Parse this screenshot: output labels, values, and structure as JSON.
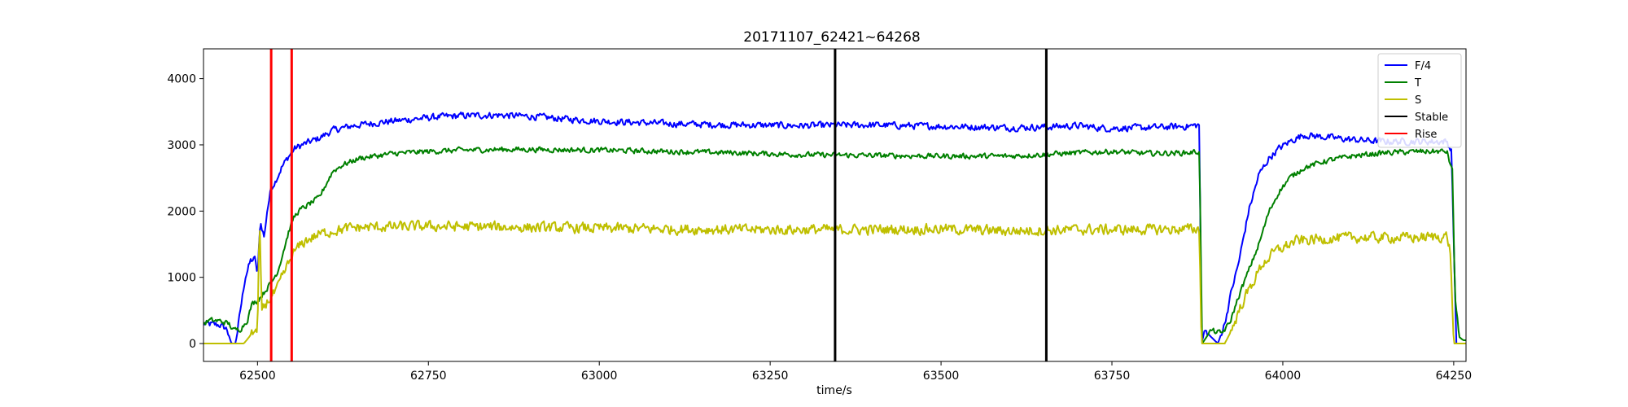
{
  "chart_data": {
    "type": "line",
    "title": "20171107_62421~64268",
    "xlabel": "time/s",
    "ylabel": "",
    "xlim": [
      62421,
      64268
    ],
    "ylim": [
      -270,
      4450
    ],
    "xticks": [
      62500,
      62750,
      63000,
      63250,
      63500,
      63750,
      64000,
      64250
    ],
    "yticks": [
      0,
      1000,
      2000,
      3000,
      4000
    ],
    "grid": false,
    "legend": {
      "placement": "top-right"
    },
    "series": [
      {
        "name": "F/4",
        "color": "#0000ff",
        "noise": 70,
        "points": [
          [
            62421,
            300
          ],
          [
            62445,
            280
          ],
          [
            62455,
            220
          ],
          [
            62462,
            0
          ],
          [
            62468,
            0
          ],
          [
            62475,
            500
          ],
          [
            62482,
            1000
          ],
          [
            62490,
            1250
          ],
          [
            62497,
            1280
          ],
          [
            62500,
            1000
          ],
          [
            62504,
            1850
          ],
          [
            62510,
            1600
          ],
          [
            62514,
            2000
          ],
          [
            62520,
            2350
          ],
          [
            62526,
            2450
          ],
          [
            62535,
            2650
          ],
          [
            62545,
            2820
          ],
          [
            62555,
            2950
          ],
          [
            62570,
            3020
          ],
          [
            62590,
            3100
          ],
          [
            62610,
            3220
          ],
          [
            62640,
            3290
          ],
          [
            62680,
            3340
          ],
          [
            62720,
            3380
          ],
          [
            62760,
            3420
          ],
          [
            62800,
            3440
          ],
          [
            62850,
            3450
          ],
          [
            62900,
            3430
          ],
          [
            62950,
            3390
          ],
          [
            63000,
            3360
          ],
          [
            63050,
            3340
          ],
          [
            63100,
            3320
          ],
          [
            63200,
            3300
          ],
          [
            63300,
            3290
          ],
          [
            63400,
            3300
          ],
          [
            63500,
            3280
          ],
          [
            63600,
            3260
          ],
          [
            63650,
            3270
          ],
          [
            63700,
            3290
          ],
          [
            63740,
            3250
          ],
          [
            63800,
            3260
          ],
          [
            63860,
            3280
          ],
          [
            63878,
            3300
          ],
          [
            63881,
            0
          ],
          [
            63886,
            200
          ],
          [
            63895,
            100
          ],
          [
            63905,
            0
          ],
          [
            63915,
            300
          ],
          [
            63925,
            800
          ],
          [
            63935,
            1200
          ],
          [
            63950,
            2000
          ],
          [
            63965,
            2550
          ],
          [
            63980,
            2800
          ],
          [
            63995,
            2950
          ],
          [
            64010,
            3050
          ],
          [
            64030,
            3150
          ],
          [
            64060,
            3120
          ],
          [
            64100,
            3080
          ],
          [
            64150,
            3050
          ],
          [
            64200,
            3050
          ],
          [
            64240,
            3050
          ],
          [
            64247,
            2900
          ],
          [
            64250,
            1500
          ],
          [
            64254,
            0
          ],
          [
            64268,
            0
          ]
        ]
      },
      {
        "name": "T",
        "color": "#008000",
        "noise": 55,
        "points": [
          [
            62421,
            300
          ],
          [
            62430,
            350
          ],
          [
            62445,
            340
          ],
          [
            62458,
            300
          ],
          [
            62465,
            200
          ],
          [
            62475,
            220
          ],
          [
            62485,
            350
          ],
          [
            62492,
            600
          ],
          [
            62500,
            650
          ],
          [
            62508,
            750
          ],
          [
            62515,
            850
          ],
          [
            62522,
            950
          ],
          [
            62530,
            1100
          ],
          [
            62538,
            1400
          ],
          [
            62546,
            1700
          ],
          [
            62553,
            1900
          ],
          [
            62560,
            2000
          ],
          [
            62575,
            2100
          ],
          [
            62590,
            2200
          ],
          [
            62600,
            2400
          ],
          [
            62610,
            2600
          ],
          [
            62625,
            2700
          ],
          [
            62650,
            2800
          ],
          [
            62700,
            2870
          ],
          [
            62750,
            2900
          ],
          [
            62800,
            2920
          ],
          [
            62850,
            2930
          ],
          [
            62900,
            2930
          ],
          [
            63000,
            2920
          ],
          [
            63100,
            2900
          ],
          [
            63200,
            2880
          ],
          [
            63300,
            2850
          ],
          [
            63400,
            2840
          ],
          [
            63500,
            2830
          ],
          [
            63600,
            2830
          ],
          [
            63700,
            2880
          ],
          [
            63750,
            2900
          ],
          [
            63800,
            2870
          ],
          [
            63860,
            2880
          ],
          [
            63878,
            2900
          ],
          [
            63882,
            0
          ],
          [
            63895,
            200
          ],
          [
            63910,
            150
          ],
          [
            63922,
            300
          ],
          [
            63935,
            700
          ],
          [
            63950,
            1100
          ],
          [
            63965,
            1500
          ],
          [
            63980,
            2000
          ],
          [
            63995,
            2300
          ],
          [
            64010,
            2500
          ],
          [
            64030,
            2650
          ],
          [
            64060,
            2750
          ],
          [
            64100,
            2830
          ],
          [
            64150,
            2880
          ],
          [
            64200,
            2900
          ],
          [
            64240,
            2900
          ],
          [
            64248,
            2600
          ],
          [
            64252,
            700
          ],
          [
            64258,
            100
          ],
          [
            64264,
            50
          ],
          [
            64268,
            50
          ]
        ]
      },
      {
        "name": "S",
        "color": "#bfbf00",
        "noise": 110,
        "points": [
          [
            62421,
            0
          ],
          [
            62470,
            0
          ],
          [
            62480,
            0
          ],
          [
            62488,
            100
          ],
          [
            62494,
            200
          ],
          [
            62500,
            150
          ],
          [
            62503,
            1900
          ],
          [
            62506,
            500
          ],
          [
            62512,
            600
          ],
          [
            62520,
            700
          ],
          [
            62528,
            800
          ],
          [
            62536,
            1000
          ],
          [
            62545,
            1200
          ],
          [
            62555,
            1400
          ],
          [
            62570,
            1550
          ],
          [
            62590,
            1650
          ],
          [
            62610,
            1700
          ],
          [
            62640,
            1750
          ],
          [
            62680,
            1760
          ],
          [
            62750,
            1770
          ],
          [
            62850,
            1760
          ],
          [
            63000,
            1740
          ],
          [
            63100,
            1730
          ],
          [
            63200,
            1720
          ],
          [
            63300,
            1720
          ],
          [
            63400,
            1720
          ],
          [
            63500,
            1730
          ],
          [
            63600,
            1700
          ],
          [
            63700,
            1720
          ],
          [
            63800,
            1720
          ],
          [
            63878,
            1730
          ],
          [
            63881,
            0
          ],
          [
            63900,
            0
          ],
          [
            63915,
            0
          ],
          [
            63925,
            200
          ],
          [
            63940,
            600
          ],
          [
            63955,
            900
          ],
          [
            63970,
            1200
          ],
          [
            63990,
            1400
          ],
          [
            64020,
            1550
          ],
          [
            64060,
            1580
          ],
          [
            64100,
            1600
          ],
          [
            64150,
            1600
          ],
          [
            64200,
            1600
          ],
          [
            64240,
            1620
          ],
          [
            64245,
            1400
          ],
          [
            64250,
            0
          ],
          [
            64268,
            0
          ]
        ]
      },
      {
        "name": "Stable",
        "color": "#000000",
        "vlines": [
          63345,
          63654
        ]
      },
      {
        "name": "Rise",
        "color": "#ff0000",
        "vlines": [
          62520,
          62550
        ]
      }
    ]
  }
}
